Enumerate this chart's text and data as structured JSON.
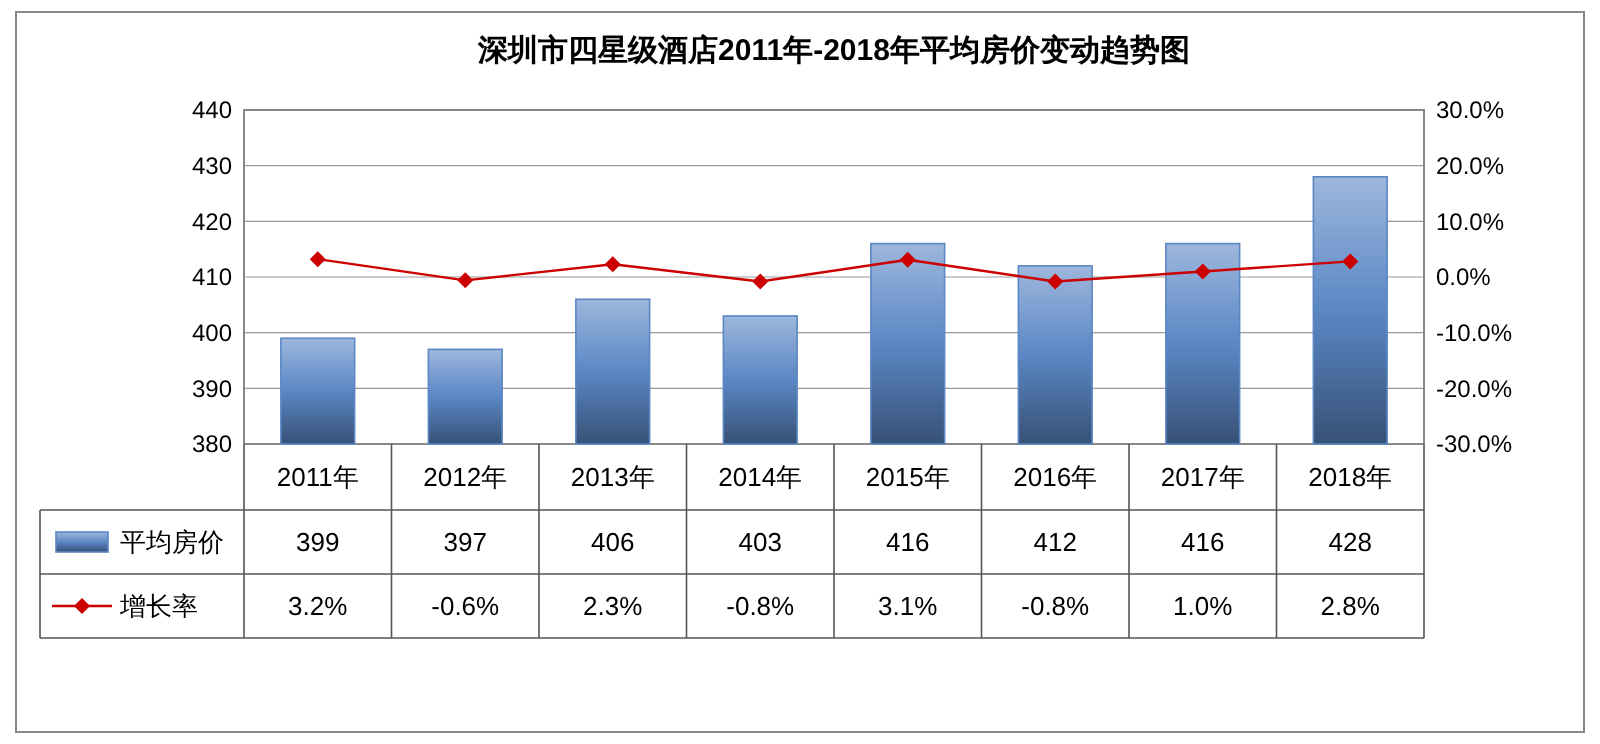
{
  "chart_data": {
    "type": "bar",
    "title": "深圳市四星级酒店2011年-2018年平均房价变动趋势图",
    "categories": [
      "2011年",
      "2012年",
      "2013年",
      "2014年",
      "2015年",
      "2016年",
      "2017年",
      "2018年"
    ],
    "series": [
      {
        "name": "平均房价",
        "color": "#5b87c5",
        "values": [
          399,
          397,
          406,
          403,
          416,
          412,
          416,
          428
        ],
        "value_labels": [
          "399",
          "397",
          "406",
          "403",
          "416",
          "412",
          "416",
          "428"
        ]
      },
      {
        "name": "增长率",
        "type": "line",
        "axis": "y2",
        "color": "#cc0000",
        "marker": "diamond",
        "values": [
          3.2,
          -0.6,
          2.3,
          -0.8,
          3.1,
          -0.8,
          1.0,
          2.8
        ],
        "value_labels": [
          "3.2%",
          "-0.6%",
          "2.3%",
          "-0.8%",
          "3.1%",
          "-0.8%",
          "1.0%",
          "2.8%"
        ]
      }
    ],
    "ylim": [
      380,
      440
    ],
    "yticks": [
      380,
      390,
      400,
      410,
      420,
      430,
      440
    ],
    "y2lim": [
      -30,
      30
    ],
    "y2ticks": [
      {
        "value": -30,
        "label": "-30.0%"
      },
      {
        "value": -20,
        "label": "-20.0%"
      },
      {
        "value": -10,
        "label": "-10.0%"
      },
      {
        "value": 0,
        "label": "0.0%"
      },
      {
        "value": 10,
        "label": "10.0%"
      },
      {
        "value": 20,
        "label": "20.0%"
      },
      {
        "value": 30,
        "label": "30.0%"
      }
    ],
    "grid": "y",
    "legend": "bottom"
  }
}
